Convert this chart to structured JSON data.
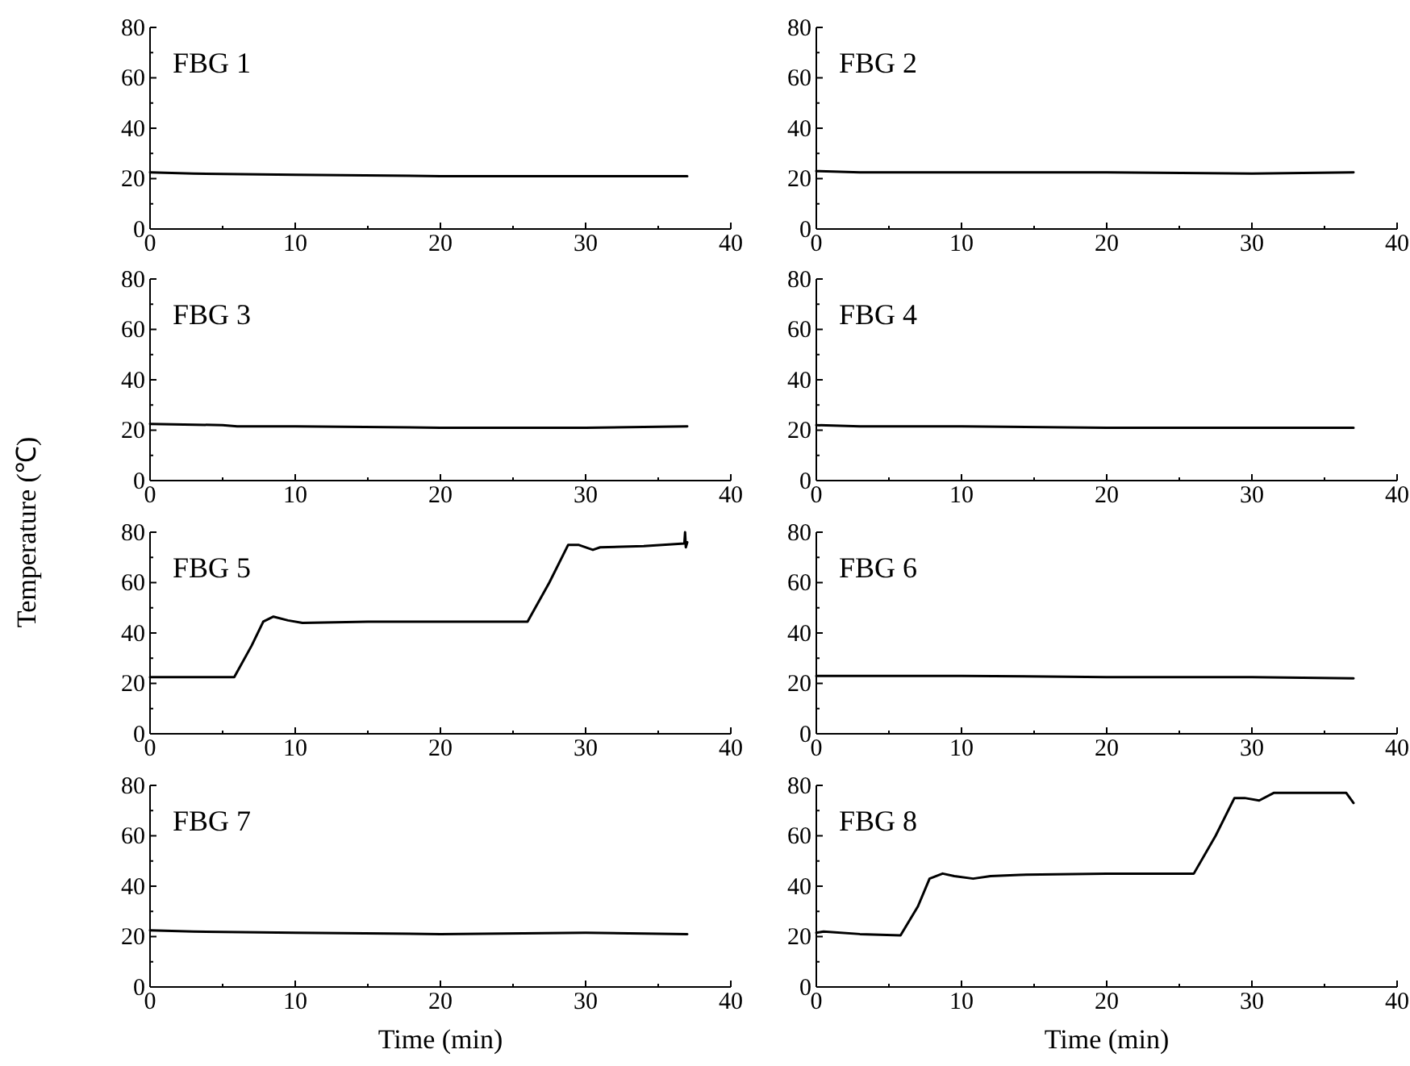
{
  "chart_data": [
    {
      "type": "line",
      "annotations": [
        "FBG 1"
      ],
      "x": [
        0,
        3,
        10,
        20,
        30,
        37
      ],
      "values": [
        22.5,
        22,
        21.5,
        21,
        21,
        21
      ],
      "xlim": [
        0,
        40
      ],
      "ylim": [
        0,
        80
      ],
      "xticks": [
        0,
        {
          "value": 5,
          "label": null
        },
        10,
        {
          "value": 15,
          "label": null
        },
        20,
        {
          "value": 25,
          "label": null
        },
        30,
        {
          "value": 35,
          "label": null
        },
        40
      ],
      "yticks": [
        0,
        {
          "value": 10,
          "label": null
        },
        20,
        {
          "value": 30,
          "label": null
        },
        40,
        {
          "value": 50,
          "label": null
        },
        60,
        {
          "value": 70,
          "label": null
        },
        80
      ],
      "color": "#000000"
    },
    {
      "type": "line",
      "annotations": [
        "FBG 2"
      ],
      "x": [
        0,
        3,
        10,
        20,
        30,
        37
      ],
      "values": [
        23,
        22.5,
        22.5,
        22.5,
        22,
        22.5
      ],
      "xlim": [
        0,
        40
      ],
      "ylim": [
        0,
        80
      ],
      "xticks": [
        0,
        {
          "value": 5,
          "label": null
        },
        10,
        {
          "value": 15,
          "label": null
        },
        20,
        {
          "value": 25,
          "label": null
        },
        30,
        {
          "value": 35,
          "label": null
        },
        40
      ],
      "yticks": [
        0,
        {
          "value": 10,
          "label": null
        },
        20,
        {
          "value": 30,
          "label": null
        },
        40,
        {
          "value": 50,
          "label": null
        },
        60,
        {
          "value": 70,
          "label": null
        },
        80
      ],
      "color": "#000000"
    },
    {
      "type": "line",
      "annotations": [
        "FBG 3"
      ],
      "ylabel": "Temperature (℃)",
      "x": [
        0,
        5,
        6,
        7,
        10,
        20,
        30,
        37
      ],
      "values": [
        22.5,
        22,
        21.5,
        21.5,
        21.5,
        21,
        21,
        21.5
      ],
      "xlim": [
        0,
        40
      ],
      "ylim": [
        0,
        80
      ],
      "xticks": [
        0,
        {
          "value": 5,
          "label": null
        },
        10,
        {
          "value": 15,
          "label": null
        },
        20,
        {
          "value": 25,
          "label": null
        },
        30,
        {
          "value": 35,
          "label": null
        },
        40
      ],
      "yticks": [
        0,
        {
          "value": 10,
          "label": null
        },
        20,
        {
          "value": 30,
          "label": null
        },
        40,
        {
          "value": 50,
          "label": null
        },
        60,
        {
          "value": 70,
          "label": null
        },
        80
      ],
      "color": "#000000"
    },
    {
      "type": "line",
      "annotations": [
        "FBG 4"
      ],
      "x": [
        0,
        3,
        10,
        20,
        30,
        37
      ],
      "values": [
        22,
        21.5,
        21.5,
        21,
        21,
        21
      ],
      "xlim": [
        0,
        40
      ],
      "ylim": [
        0,
        80
      ],
      "xticks": [
        0,
        {
          "value": 5,
          "label": null
        },
        10,
        {
          "value": 15,
          "label": null
        },
        20,
        {
          "value": 25,
          "label": null
        },
        30,
        {
          "value": 35,
          "label": null
        },
        40
      ],
      "yticks": [
        0,
        {
          "value": 10,
          "label": null
        },
        20,
        {
          "value": 30,
          "label": null
        },
        40,
        {
          "value": 50,
          "label": null
        },
        60,
        {
          "value": 70,
          "label": null
        },
        80
      ],
      "color": "#000000"
    },
    {
      "type": "line",
      "annotations": [
        "FBG 5"
      ],
      "x": [
        0,
        3,
        5.8,
        7,
        7.8,
        8.5,
        9.5,
        10.5,
        15,
        20,
        26,
        27.5,
        28.8,
        29.5,
        30.5,
        31,
        34,
        36.8,
        36.85,
        36.9,
        37
      ],
      "values": [
        22.5,
        22.5,
        22.5,
        35,
        44.5,
        46.5,
        45,
        44,
        44.5,
        44.5,
        44.5,
        60,
        75,
        75,
        73,
        74,
        74.5,
        75.5,
        80,
        74,
        76
      ],
      "xlim": [
        0,
        40
      ],
      "ylim": [
        0,
        80
      ],
      "xticks": [
        0,
        {
          "value": 5,
          "label": null
        },
        10,
        {
          "value": 15,
          "label": null
        },
        20,
        {
          "value": 25,
          "label": null
        },
        30,
        {
          "value": 35,
          "label": null
        },
        40
      ],
      "yticks": [
        0,
        {
          "value": 10,
          "label": null
        },
        20,
        {
          "value": 30,
          "label": null
        },
        40,
        {
          "value": 50,
          "label": null
        },
        60,
        {
          "value": 70,
          "label": null
        },
        80
      ],
      "color": "#000000"
    },
    {
      "type": "line",
      "annotations": [
        "FBG 6"
      ],
      "x": [
        0,
        3,
        10,
        20,
        30,
        37
      ],
      "values": [
        23,
        23,
        23,
        22.5,
        22.5,
        22
      ],
      "xlim": [
        0,
        40
      ],
      "ylim": [
        0,
        80
      ],
      "xticks": [
        0,
        {
          "value": 5,
          "label": null
        },
        10,
        {
          "value": 15,
          "label": null
        },
        20,
        {
          "value": 25,
          "label": null
        },
        30,
        {
          "value": 35,
          "label": null
        },
        40
      ],
      "yticks": [
        0,
        {
          "value": 10,
          "label": null
        },
        20,
        {
          "value": 30,
          "label": null
        },
        40,
        {
          "value": 50,
          "label": null
        },
        60,
        {
          "value": 70,
          "label": null
        },
        80
      ],
      "color": "#000000"
    },
    {
      "type": "line",
      "annotations": [
        "FBG 7"
      ],
      "xlabel": "Time (min)",
      "x": [
        0,
        3,
        10,
        20,
        30,
        37
      ],
      "values": [
        22.5,
        22,
        21.5,
        21,
        21.5,
        21
      ],
      "xlim": [
        0,
        40
      ],
      "ylim": [
        0,
        80
      ],
      "xticks": [
        0,
        {
          "value": 5,
          "label": null
        },
        10,
        {
          "value": 15,
          "label": null
        },
        20,
        {
          "value": 25,
          "label": null
        },
        30,
        {
          "value": 35,
          "label": null
        },
        40
      ],
      "yticks": [
        0,
        {
          "value": 10,
          "label": null
        },
        20,
        {
          "value": 30,
          "label": null
        },
        40,
        {
          "value": 50,
          "label": null
        },
        60,
        {
          "value": 70,
          "label": null
        },
        80
      ],
      "color": "#000000"
    },
    {
      "type": "line",
      "annotations": [
        "FBG 8"
      ],
      "xlabel": "Time (min)",
      "x": [
        0,
        0.5,
        3,
        5.8,
        7,
        7.8,
        8.7,
        9.5,
        10.8,
        12,
        14,
        20,
        26,
        27.5,
        28.8,
        29.5,
        30.5,
        31.5,
        34,
        36.5,
        37
      ],
      "values": [
        21.5,
        22,
        21,
        20.5,
        32,
        43,
        45,
        44,
        43,
        44,
        44.5,
        45,
        45,
        60,
        75,
        75,
        74,
        77,
        77,
        77,
        73
      ],
      "xlim": [
        0,
        40
      ],
      "ylim": [
        0,
        80
      ],
      "xticks": [
        0,
        {
          "value": 5,
          "label": null
        },
        10,
        {
          "value": 15,
          "label": null
        },
        20,
        {
          "value": 25,
          "label": null
        },
        30,
        {
          "value": 35,
          "label": null
        },
        40
      ],
      "yticks": [
        0,
        {
          "value": 10,
          "label": null
        },
        20,
        {
          "value": 30,
          "label": null
        },
        40,
        {
          "value": 50,
          "label": null
        },
        60,
        {
          "value": 70,
          "label": null
        },
        80
      ],
      "color": "#000000"
    }
  ]
}
